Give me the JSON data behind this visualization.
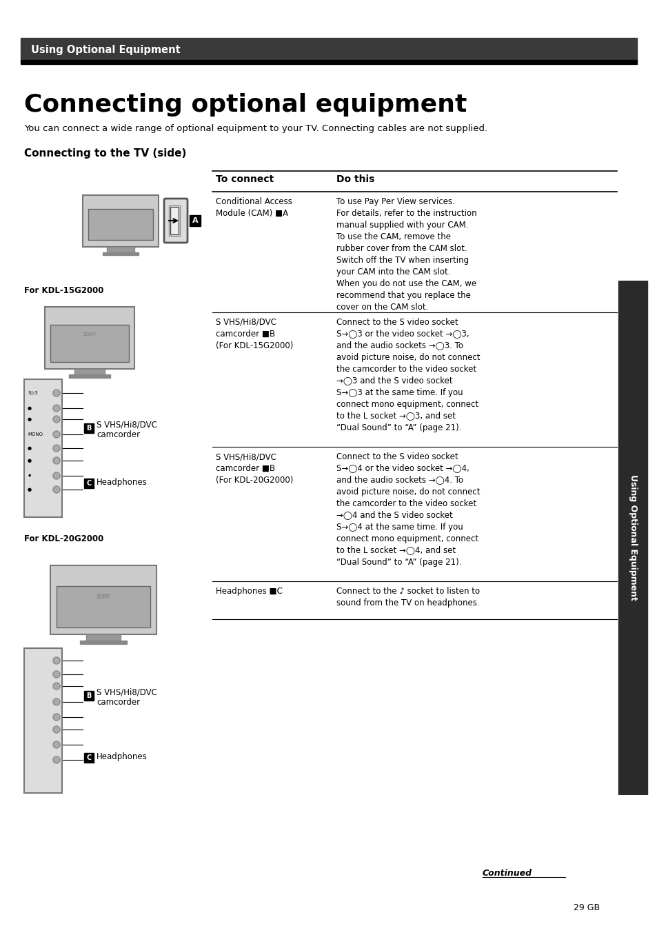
{
  "bg_color": "#ffffff",
  "header_bg": "#3a3a3a",
  "header_text": "Using Optional Equipment",
  "header_text_color": "#ffffff",
  "title": "Connecting optional equipment",
  "subtitle": "You can connect a wide range of optional equipment to your TV. Connecting cables are not supplied.",
  "section_title": "Connecting to the TV (side)",
  "col1_header": "To connect",
  "col2_header": "Do this",
  "table_rows": [
    {
      "col1": "Conditional Access\nModule (CAM) ■A",
      "col2": "To use Pay Per View services.\nFor details, refer to the instruction\nmanual supplied with your CAM.\nTo use the CAM, remove the\nrubber cover from the CAM slot.\nSwitch off the TV when inserting\nyour CAM into the CAM slot.\nWhen you do not use the CAM, we\nrecommend that you replace the\ncover on the CAM slot."
    },
    {
      "col1": "S VHS/Hi8/DVC\ncamcorder ■B\n(For KDL-15G2000)",
      "col2": "Connect to the S video socket\nS→·3 or the video socket →·3,\nand the audio sockets →·3. To\navoid picture noise, do not connect\nthe camcorder to the video socket\n→·3 and the S video socket\nS→·3 at the same time. If you\nconnect mono equipment, connect\nto the L socket →·3, and set\n\"Dual Sound\" to \"A\" (page 21)."
    },
    {
      "col1": "S VHS/Hi8/DVC\ncamcorder ■B\n(For KDL-20G2000)",
      "col2": "Connect to the S video socket\nS→·4 or the video socket →·4,\nand the audio sockets →·4. To\navoid picture noise, do not connect\nthe camcorder to the video socket\n→·4 and the S video socket\nS→·4 at the same time. If you\nconnect mono equipment, connect\nto the L socket →·4, and set\n\"Dual Sound\" to \"A\" (page 21)."
    },
    {
      "col1": "Headphones ■C",
      "col2": "Connect to the ♪ socket to listen to\nsound from the TV on headphones."
    }
  ],
  "side_label": "Using Optional Equipment",
  "continued_text": "Continued",
  "page_number": "29 GB",
  "for_kdl15": "For KDL-15G2000",
  "for_kdl20": "For KDL-20G2000"
}
